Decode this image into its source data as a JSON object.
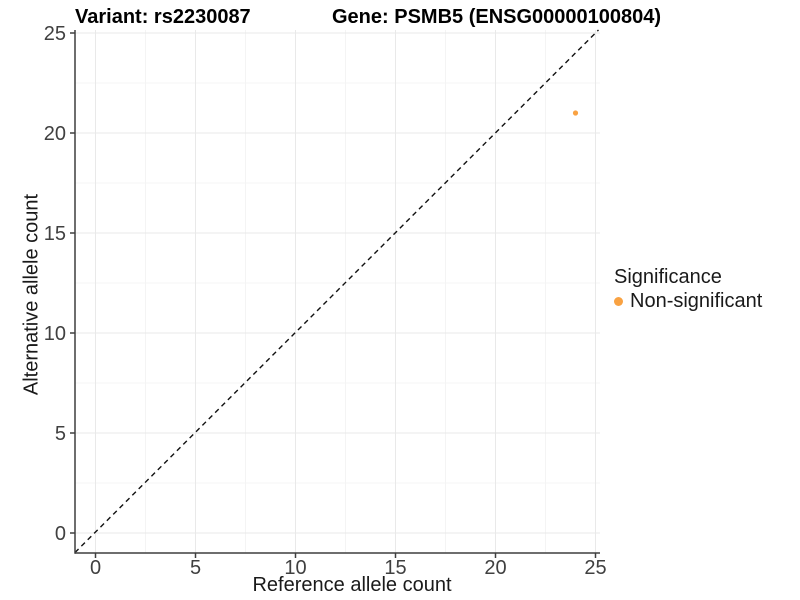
{
  "chart_data": {
    "type": "scatter",
    "titles": {
      "left": "Variant: rs2230087",
      "right": "Gene: PSMB5 (ENSG00000100804)"
    },
    "xlabel": "Reference allele count",
    "ylabel": "Alternative allele count",
    "xticks": [
      0,
      5,
      10,
      15,
      20,
      25
    ],
    "yticks": [
      0,
      5,
      10,
      15,
      20,
      25
    ],
    "xlim": [
      -1.05,
      25.2
    ],
    "ylim": [
      -1.0,
      25.15
    ],
    "grid": "major and minor gridlines, no panel border, dark left/bottom axis lines",
    "points": [
      {
        "x": 24,
        "y": 21,
        "significance": "Non-significant"
      }
    ],
    "identity_line": {
      "slope": 1,
      "intercept": 0,
      "style": "dashed"
    },
    "legend": {
      "title": "Significance",
      "position": "right",
      "entries": [
        {
          "label": "Non-significant",
          "color": "#F9A242"
        }
      ]
    },
    "colors": {
      "background": "#FFFFFF",
      "point": "#F9A242",
      "grid_major": "#E9E9E9",
      "grid_minor": "#F4F4F4",
      "axis_line": "#3F3F3F",
      "tick_mark": "#3F3F3F",
      "tick_text": "#404040",
      "dashed_line": "#111111",
      "title_text": "#000000"
    }
  }
}
